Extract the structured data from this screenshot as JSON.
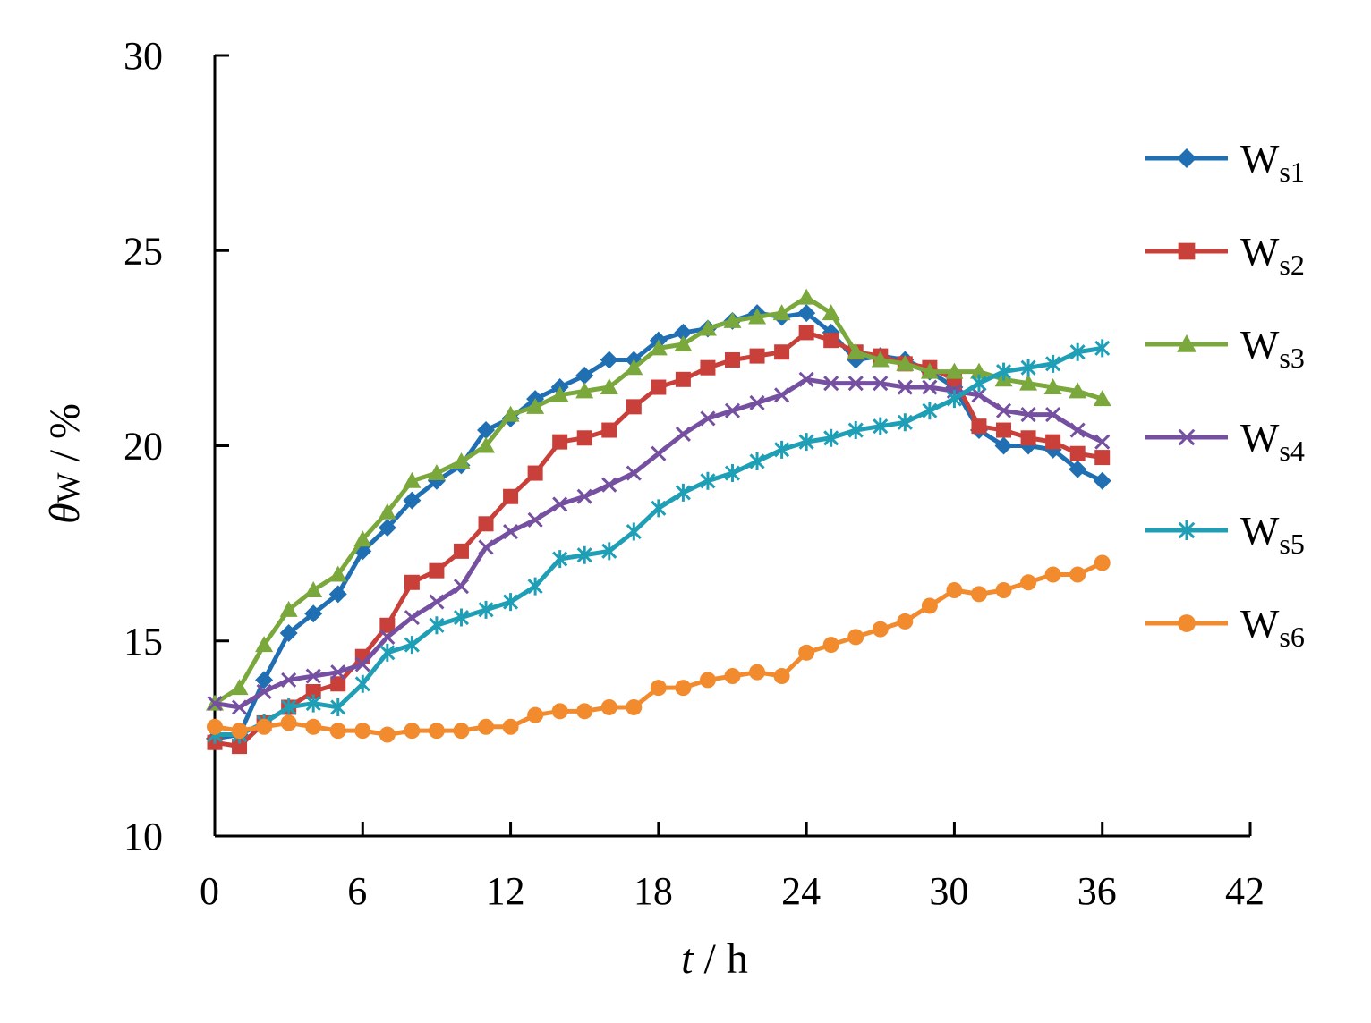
{
  "chart_data": {
    "type": "line",
    "title": "",
    "xlabel": {
      "var": "t",
      "sep": " / ",
      "unit": "h"
    },
    "ylabel": {
      "var": "θ",
      "sub": "W",
      "sep": " / ",
      "unit": "%"
    },
    "xlim": [
      0,
      42
    ],
    "ylim": [
      10,
      30
    ],
    "xticks": [
      "0",
      "6",
      "12",
      "18",
      "24",
      "30",
      "36",
      "42"
    ],
    "yticks": [
      "10",
      "15",
      "20",
      "25",
      "30"
    ],
    "grid": false,
    "legend_position": "right",
    "x": [
      0,
      1,
      2,
      3,
      4,
      5,
      6,
      7,
      8,
      9,
      10,
      11,
      12,
      13,
      14,
      15,
      16,
      17,
      18,
      19,
      20,
      21,
      22,
      23,
      24,
      25,
      26,
      27,
      28,
      29,
      30,
      31,
      32,
      33,
      34,
      35,
      36
    ],
    "series": [
      {
        "name": "W",
        "sub": "s1",
        "color": "#1f6fb2",
        "marker": "diamond",
        "values": [
          12.5,
          12.6,
          14.0,
          15.2,
          15.7,
          16.2,
          17.3,
          17.9,
          18.6,
          19.1,
          19.5,
          20.4,
          20.7,
          21.2,
          21.5,
          21.8,
          22.2,
          22.2,
          22.7,
          22.9,
          23.0,
          23.2,
          23.4,
          23.3,
          23.4,
          22.9,
          22.2,
          22.3,
          22.2,
          21.9,
          21.5,
          20.4,
          20.0,
          20.0,
          19.9,
          19.4,
          19.1
        ]
      },
      {
        "name": "W",
        "sub": "s2",
        "color": "#c9403a",
        "marker": "square",
        "values": [
          12.4,
          12.3,
          12.9,
          13.3,
          13.7,
          13.9,
          14.6,
          15.4,
          16.5,
          16.8,
          17.3,
          18.0,
          18.7,
          19.3,
          20.1,
          20.2,
          20.4,
          21.0,
          21.5,
          21.7,
          22.0,
          22.2,
          22.3,
          22.4,
          22.9,
          22.7,
          22.4,
          22.3,
          22.1,
          22.0,
          21.7,
          20.5,
          20.4,
          20.2,
          20.1,
          19.8,
          19.7
        ]
      },
      {
        "name": "W",
        "sub": "s3",
        "color": "#7aa83c",
        "marker": "triangle",
        "values": [
          13.4,
          13.8,
          14.9,
          15.8,
          16.3,
          16.7,
          17.6,
          18.3,
          19.1,
          19.3,
          19.6,
          20.0,
          20.8,
          21.0,
          21.3,
          21.4,
          21.5,
          22.0,
          22.5,
          22.6,
          23.0,
          23.2,
          23.3,
          23.4,
          23.8,
          23.4,
          22.4,
          22.2,
          22.1,
          21.9,
          21.9,
          21.9,
          21.7,
          21.6,
          21.5,
          21.4,
          21.2
        ]
      },
      {
        "name": "W",
        "sub": "s4",
        "color": "#7550a0",
        "marker": "x",
        "values": [
          13.4,
          13.3,
          13.7,
          14.0,
          14.1,
          14.2,
          14.4,
          15.1,
          15.6,
          16.0,
          16.4,
          17.4,
          17.8,
          18.1,
          18.5,
          18.7,
          19.0,
          19.3,
          19.8,
          20.3,
          20.7,
          20.9,
          21.1,
          21.3,
          21.7,
          21.6,
          21.6,
          21.6,
          21.5,
          21.5,
          21.4,
          21.3,
          20.9,
          20.8,
          20.8,
          20.4,
          20.1
        ]
      },
      {
        "name": "W",
        "sub": "s5",
        "color": "#1f9fb6",
        "marker": "asterisk",
        "values": [
          12.6,
          12.6,
          12.9,
          13.3,
          13.4,
          13.3,
          13.9,
          14.7,
          14.9,
          15.4,
          15.6,
          15.8,
          16.0,
          16.4,
          17.1,
          17.2,
          17.3,
          17.8,
          18.4,
          18.8,
          19.1,
          19.3,
          19.6,
          19.9,
          20.1,
          20.2,
          20.4,
          20.5,
          20.6,
          20.9,
          21.2,
          21.6,
          21.9,
          22.0,
          22.1,
          22.4,
          22.5
        ]
      },
      {
        "name": "W",
        "sub": "s6",
        "color": "#f28a2e",
        "marker": "circle",
        "values": [
          12.8,
          12.7,
          12.8,
          12.9,
          12.8,
          12.7,
          12.7,
          12.6,
          12.7,
          12.7,
          12.7,
          12.8,
          12.8,
          13.1,
          13.2,
          13.2,
          13.3,
          13.3,
          13.8,
          13.8,
          14.0,
          14.1,
          14.2,
          14.1,
          14.7,
          14.9,
          15.1,
          15.3,
          15.5,
          15.9,
          16.3,
          16.2,
          16.3,
          16.5,
          16.7,
          16.7,
          17.0
        ]
      }
    ]
  }
}
